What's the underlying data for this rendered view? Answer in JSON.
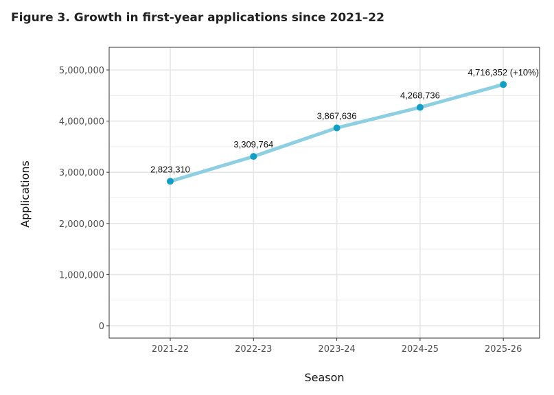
{
  "chart_data": {
    "type": "line",
    "title": "Figure 3. Growth in first-year applications since 2021–22",
    "xlabel": "Season",
    "ylabel": "Applications",
    "categories": [
      "2021-22",
      "2022-23",
      "2023-24",
      "2024-25",
      "2025-26"
    ],
    "values": [
      2823310,
      3309764,
      3867636,
      4268736,
      4716352
    ],
    "data_labels": [
      "2,823,310",
      "3,309,764",
      "3,867,636",
      "4,268,736",
      "4,716,352 (+10%)"
    ],
    "yticks": [
      0,
      1000000,
      2000000,
      3000000,
      4000000,
      5000000
    ],
    "ytick_labels": [
      "0",
      "1,000,000",
      "2,000,000",
      "3,000,000",
      "4,000,000",
      "5,000,000"
    ],
    "ylim": [
      -250000,
      5450000
    ],
    "grid": true,
    "line_color": "#8ccfe2",
    "point_color": "#129fc7"
  }
}
